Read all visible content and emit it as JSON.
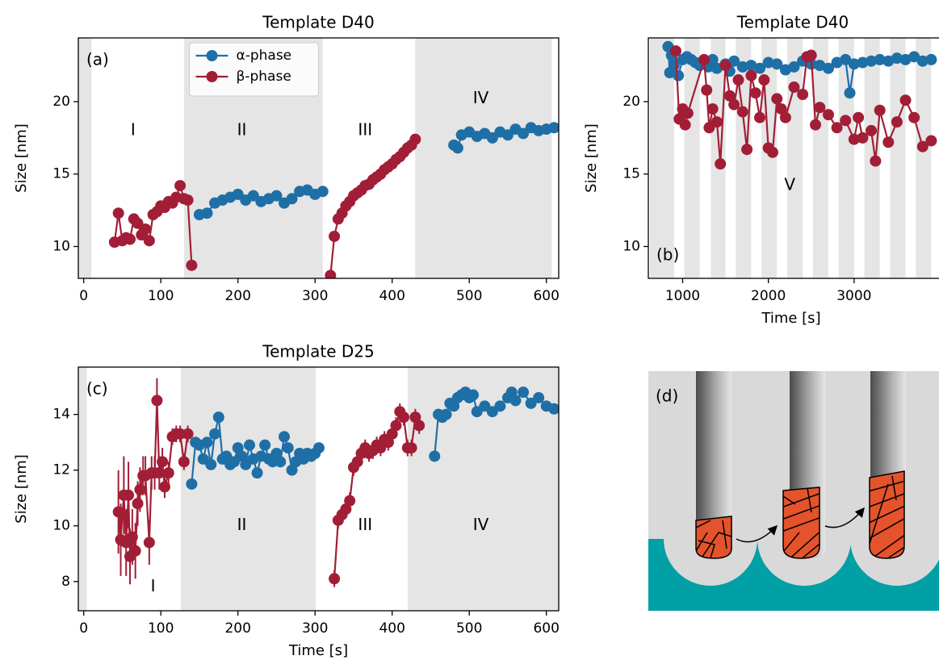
{
  "chart_data": [
    {
      "type": "line",
      "title": "Template D40",
      "ylabel": "Size [nm]",
      "panel_label": "(a)",
      "panel_label_corner": "upper left",
      "xlim": [
        -7,
        616
      ],
      "xticks": [
        0,
        100,
        200,
        300,
        400,
        500,
        600
      ],
      "ylim": [
        7.8,
        24.4
      ],
      "yticks": [
        10,
        15,
        20
      ],
      "legend": "upper center",
      "shade_color": "#e5e5e5",
      "shaded": [
        [
          -7,
          10
        ],
        [
          130,
          310
        ],
        [
          430,
          607
        ]
      ],
      "regions": [
        {
          "label": "I",
          "x": 64,
          "y": 18
        },
        {
          "label": "II",
          "x": 205,
          "y": 18
        },
        {
          "label": "III",
          "x": 365,
          "y": 18
        },
        {
          "label": "IV",
          "x": 515,
          "y": 20.2
        }
      ],
      "series": [
        {
          "name": "α-phase",
          "color": "#1f6fa7",
          "x": [
            150,
            160,
            170,
            180,
            190,
            200,
            210,
            220,
            230,
            240,
            250,
            260,
            270,
            280,
            290,
            300,
            310,
            null,
            480,
            485,
            490,
            500,
            510,
            520,
            530,
            540,
            550,
            560,
            570,
            580,
            590,
            600,
            610
          ],
          "values": [
            12.2,
            12.3,
            13.0,
            13.2,
            13.4,
            13.6,
            13.2,
            13.5,
            13.1,
            13.3,
            13.5,
            13.0,
            13.3,
            13.8,
            13.9,
            13.6,
            13.8,
            null,
            17.0,
            16.8,
            17.7,
            17.9,
            17.6,
            17.8,
            17.5,
            17.9,
            17.7,
            18.1,
            17.8,
            18.2,
            18.0,
            18.1,
            18.2
          ]
        },
        {
          "name": "β-phase",
          "color": "#a21e36",
          "x": [
            40,
            45,
            50,
            55,
            60,
            65,
            70,
            75,
            80,
            85,
            90,
            95,
            100,
            105,
            110,
            115,
            120,
            125,
            130,
            135,
            140,
            null,
            320,
            325,
            330,
            335,
            340,
            345,
            350,
            355,
            360,
            365,
            370,
            375,
            380,
            385,
            390,
            395,
            400,
            405,
            410,
            415,
            420,
            425,
            430
          ],
          "values": [
            10.3,
            12.3,
            10.4,
            10.6,
            10.5,
            11.9,
            11.6,
            10.8,
            11.2,
            10.4,
            12.2,
            12.4,
            12.8,
            12.7,
            13.1,
            13.0,
            13.4,
            14.2,
            13.3,
            13.2,
            8.7,
            null,
            8.0,
            10.7,
            11.9,
            12.3,
            12.8,
            13.1,
            13.5,
            13.7,
            13.9,
            14.2,
            14.3,
            14.6,
            14.8,
            15.0,
            15.3,
            15.5,
            15.7,
            16.0,
            16.2,
            16.5,
            16.8,
            17.0,
            17.4
          ]
        }
      ]
    },
    {
      "type": "line",
      "title": "Template D40",
      "xlabel": "Time [s]",
      "ylabel": "Size [nm]",
      "panel_label": "(b)",
      "panel_label_corner": "lower left",
      "xlim": [
        600,
        4000
      ],
      "xticks": [
        1000,
        2000,
        3000
      ],
      "ylim": [
        7.8,
        24.4
      ],
      "yticks": [
        10,
        15,
        20
      ],
      "shade_color": "#e5e5e5",
      "shaded": [
        [
          620,
          900
        ],
        [
          1020,
          1200
        ],
        [
          1330,
          1500
        ],
        [
          1620,
          1800
        ],
        [
          1920,
          2100
        ],
        [
          2220,
          2400
        ],
        [
          2520,
          2700
        ],
        [
          2820,
          3000
        ],
        [
          3120,
          3300
        ],
        [
          3420,
          3600
        ],
        [
          3720,
          3900
        ]
      ],
      "regions": [
        {
          "label": "V",
          "x": 2250,
          "y": 14.2
        }
      ],
      "series": [
        {
          "color": "#1f6fa7",
          "x": [
            830,
            850,
            870,
            900,
            950,
            1000,
            1050,
            1100,
            1150,
            1200,
            1300,
            1350,
            1400,
            1500,
            1550,
            1600,
            1700,
            1800,
            1900,
            2000,
            2100,
            2200,
            2300,
            2400,
            2500,
            2600,
            2700,
            2800,
            2900,
            2950,
            3000,
            3100,
            3200,
            3300,
            3400,
            3500,
            3600,
            3700,
            3800,
            3900
          ],
          "values": [
            23.8,
            22.0,
            23.2,
            22.5,
            21.8,
            22.9,
            23.1,
            22.9,
            22.7,
            22.5,
            22.4,
            22.9,
            22.3,
            22.6,
            22.1,
            22.8,
            22.4,
            22.5,
            22.3,
            22.7,
            22.6,
            22.2,
            22.4,
            22.8,
            22.6,
            22.5,
            22.3,
            22.7,
            22.9,
            20.6,
            22.6,
            22.7,
            22.8,
            22.9,
            22.8,
            23.0,
            22.9,
            23.1,
            22.8,
            22.9
          ]
        },
        {
          "color": "#a21e36",
          "x": [
            920,
            960,
            1000,
            1030,
            1060,
            1250,
            1280,
            1310,
            1350,
            1400,
            1440,
            1500,
            1550,
            1600,
            1650,
            1700,
            1750,
            1800,
            1850,
            1900,
            1950,
            2000,
            2050,
            2100,
            2150,
            2200,
            2300,
            2400,
            2450,
            2500,
            2550,
            2600,
            2700,
            2800,
            2900,
            3000,
            3050,
            3100,
            3200,
            3250,
            3300,
            3400,
            3500,
            3600,
            3700,
            3800,
            3900
          ],
          "values": [
            23.5,
            18.8,
            19.5,
            18.4,
            19.2,
            22.9,
            20.8,
            18.2,
            19.5,
            18.6,
            15.7,
            22.5,
            20.4,
            19.8,
            21.5,
            19.3,
            16.7,
            21.8,
            20.6,
            18.9,
            21.5,
            16.8,
            16.5,
            20.2,
            19.5,
            18.9,
            21.0,
            20.5,
            23.1,
            23.2,
            18.4,
            19.6,
            19.1,
            18.2,
            18.7,
            17.4,
            18.9,
            17.5,
            18.0,
            15.9,
            19.4,
            17.2,
            18.6,
            20.1,
            18.9,
            16.9,
            17.3
          ]
        }
      ]
    },
    {
      "type": "line",
      "title": "Template D25",
      "xlabel": "Time [s]",
      "ylabel": "Size [nm]",
      "panel_label": "(c)",
      "panel_label_corner": "upper left",
      "xlim": [
        -7,
        616
      ],
      "xticks": [
        0,
        100,
        200,
        300,
        400,
        500,
        600
      ],
      "ylim": [
        6.95,
        15.7
      ],
      "yticks": [
        8,
        10,
        12,
        14
      ],
      "shade_color": "#e5e5e5",
      "shaded": [
        [
          -7,
          4
        ],
        [
          126,
          301
        ],
        [
          420,
          616
        ]
      ],
      "regions": [
        {
          "label": "I",
          "x": 90,
          "y": 7.8
        },
        {
          "label": "II",
          "x": 205,
          "y": 10
        },
        {
          "label": "III",
          "x": 365,
          "y": 10
        },
        {
          "label": "IV",
          "x": 515,
          "y": 10
        }
      ],
      "series": [
        {
          "color": "#1f6fa7",
          "x": [
            140,
            145,
            150,
            155,
            160,
            165,
            170,
            175,
            180,
            185,
            190,
            195,
            200,
            205,
            210,
            215,
            220,
            225,
            230,
            235,
            240,
            245,
            250,
            255,
            260,
            265,
            270,
            275,
            280,
            285,
            290,
            295,
            300,
            305,
            null,
            455,
            460,
            465,
            470,
            475,
            480,
            485,
            490,
            495,
            500,
            505,
            510,
            520,
            530,
            540,
            550,
            555,
            560,
            570,
            580,
            590,
            600,
            610
          ],
          "values": [
            11.5,
            13.0,
            12.9,
            12.4,
            13.0,
            12.2,
            13.3,
            13.9,
            12.4,
            12.5,
            12.2,
            12.3,
            12.8,
            12.5,
            12.2,
            12.9,
            12.4,
            11.9,
            12.5,
            12.9,
            12.4,
            12.3,
            12.6,
            12.3,
            13.2,
            12.8,
            12.0,
            12.3,
            12.6,
            12.4,
            12.6,
            12.5,
            12.6,
            12.8,
            null,
            12.5,
            14.0,
            13.9,
            14.0,
            14.4,
            14.3,
            14.6,
            14.7,
            14.8,
            14.6,
            14.7,
            14.1,
            14.3,
            14.1,
            14.3,
            14.6,
            14.8,
            14.5,
            14.8,
            14.4,
            14.6,
            14.3,
            14.2
          ]
        },
        {
          "color": "#a21e36",
          "x": [
            45,
            48,
            52,
            55,
            58,
            60,
            63,
            67,
            70,
            73,
            77,
            80,
            85,
            88,
            92,
            95,
            98,
            102,
            105,
            110,
            115,
            120,
            125,
            130,
            135,
            null,
            325,
            330,
            335,
            340,
            345,
            350,
            355,
            360,
            365,
            370,
            375,
            380,
            385,
            390,
            395,
            400,
            405,
            410,
            415,
            420,
            425,
            430,
            435
          ],
          "values": [
            10.5,
            9.5,
            11.1,
            9.4,
            11.1,
            8.9,
            9.6,
            9.1,
            10.8,
            11.3,
            11.8,
            11.8,
            9.4,
            11.9,
            11.9,
            14.5,
            11.9,
            12.3,
            11.4,
            11.9,
            13.2,
            13.3,
            13.3,
            12.3,
            13.3,
            null,
            8.1,
            10.2,
            10.4,
            10.6,
            10.9,
            12.1,
            12.3,
            12.6,
            12.8,
            12.6,
            12.7,
            12.9,
            12.8,
            13.1,
            13.0,
            13.3,
            13.6,
            14.1,
            13.9,
            12.8,
            12.8,
            13.9,
            13.6
          ],
          "errors": [
            1.5,
            1.3,
            1.4,
            1.2,
            1.2,
            1.0,
            1.0,
            1.0,
            0.8,
            0.8,
            0.7,
            0.7,
            0.8,
            0.6,
            0.6,
            0.8,
            0.6,
            0.5,
            0.4,
            0.4,
            0.3,
            0.3,
            0.3,
            0.3,
            0.3,
            null,
            0.3,
            0.3,
            0.3,
            0.3,
            0.3,
            0.3,
            0.3,
            0.3,
            0.3,
            0.3,
            0.3,
            0.3,
            0.3,
            0.3,
            0.3,
            0.3,
            0.3,
            0.3,
            0.3,
            0.3,
            0.3,
            0.3,
            0.3
          ]
        }
      ]
    }
  ],
  "panel_d": {
    "label": "(d)"
  }
}
